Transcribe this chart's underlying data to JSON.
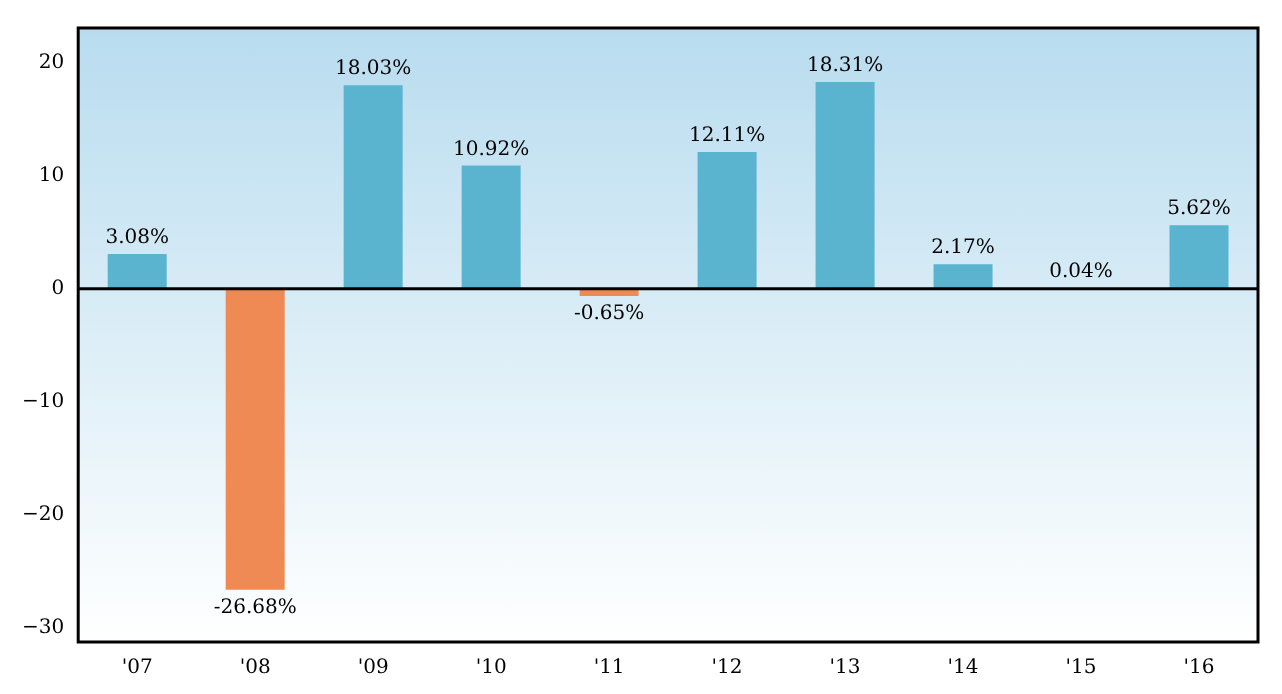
{
  "chart_data": {
    "type": "bar",
    "categories": [
      "'07",
      "'08",
      "'09",
      "'10",
      "'11",
      "'12",
      "'13",
      "'14",
      "'15",
      "'16"
    ],
    "values": [
      3.08,
      -26.68,
      18.03,
      10.92,
      -0.65,
      12.11,
      18.31,
      2.17,
      0.04,
      5.62
    ],
    "colors": [
      "#5ab4cf",
      "#ef8a55",
      "#5ab4cf",
      "#5ab4cf",
      "#ef8a55",
      "#5ab4cf",
      "#5ab4cf",
      "#5ab4cf",
      "#5ab4cf",
      "#5ab4cf"
    ],
    "value_labels": [
      "3.08%",
      "-26.68%",
      "18.03%",
      "10.92%",
      "-0.65%",
      "12.11%",
      "18.31%",
      "2.17%",
      "0.04%",
      "5.62%"
    ],
    "ylim": [
      -31.3,
      23.1
    ],
    "yticks": [
      {
        "value": -30,
        "label": "−30"
      },
      {
        "value": -20,
        "label": "−20"
      },
      {
        "value": -10,
        "label": "−10"
      },
      0,
      10,
      20
    ],
    "ref_lines": [
      {
        "axis": "y",
        "value": 0,
        "color": "#000000"
      }
    ],
    "grid": false,
    "legend": false
  }
}
